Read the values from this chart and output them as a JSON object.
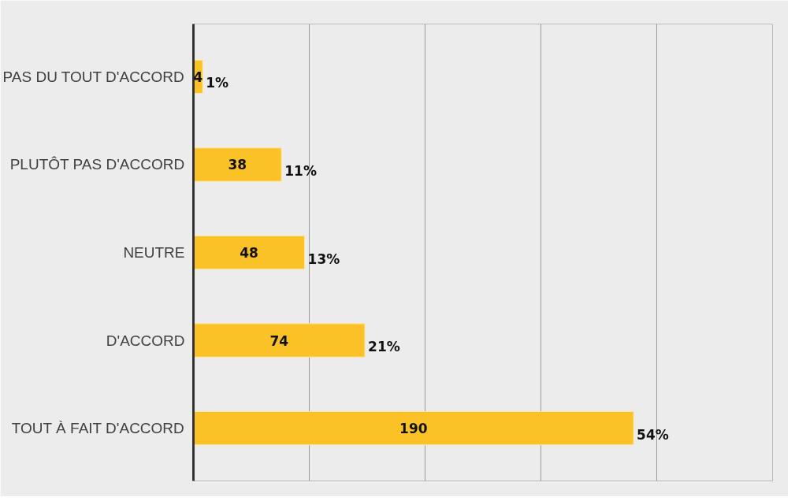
{
  "chart_data": {
    "type": "bar",
    "orientation": "horizontal",
    "categories": [
      "PAS DU TOUT D'ACCORD",
      "PLUTÔT PAS D'ACCORD",
      "NEUTRE",
      "D'ACCORD",
      "TOUT À FAIT D'ACCORD"
    ],
    "values": [
      4,
      38,
      48,
      74,
      190
    ],
    "color": "#fac227",
    "data_labels": true,
    "xlim": [
      0,
      250
    ],
    "xticks": [
      {
        "value": 0,
        "label": null
      },
      {
        "value": 50,
        "label": null
      },
      {
        "value": 100,
        "label": null
      },
      {
        "value": 150,
        "label": null
      },
      {
        "value": 200,
        "label": null
      },
      {
        "value": 250,
        "label": null
      }
    ],
    "grid": "x",
    "tick_labels": "y",
    "annotations": [
      {
        "text": "1%",
        "x": 4,
        "y": "PAS DU TOUT D'ACCORD"
      },
      {
        "text": "11%",
        "x": 38,
        "y": "PLUTÔT PAS D'ACCORD"
      },
      {
        "text": "13%",
        "x": 48,
        "y": "NEUTRE"
      },
      {
        "text": "21%",
        "x": 74,
        "y": "D'ACCORD"
      },
      {
        "text": "54%",
        "x": 190,
        "y": "TOUT À FAIT D'ACCORD"
      }
    ]
  }
}
